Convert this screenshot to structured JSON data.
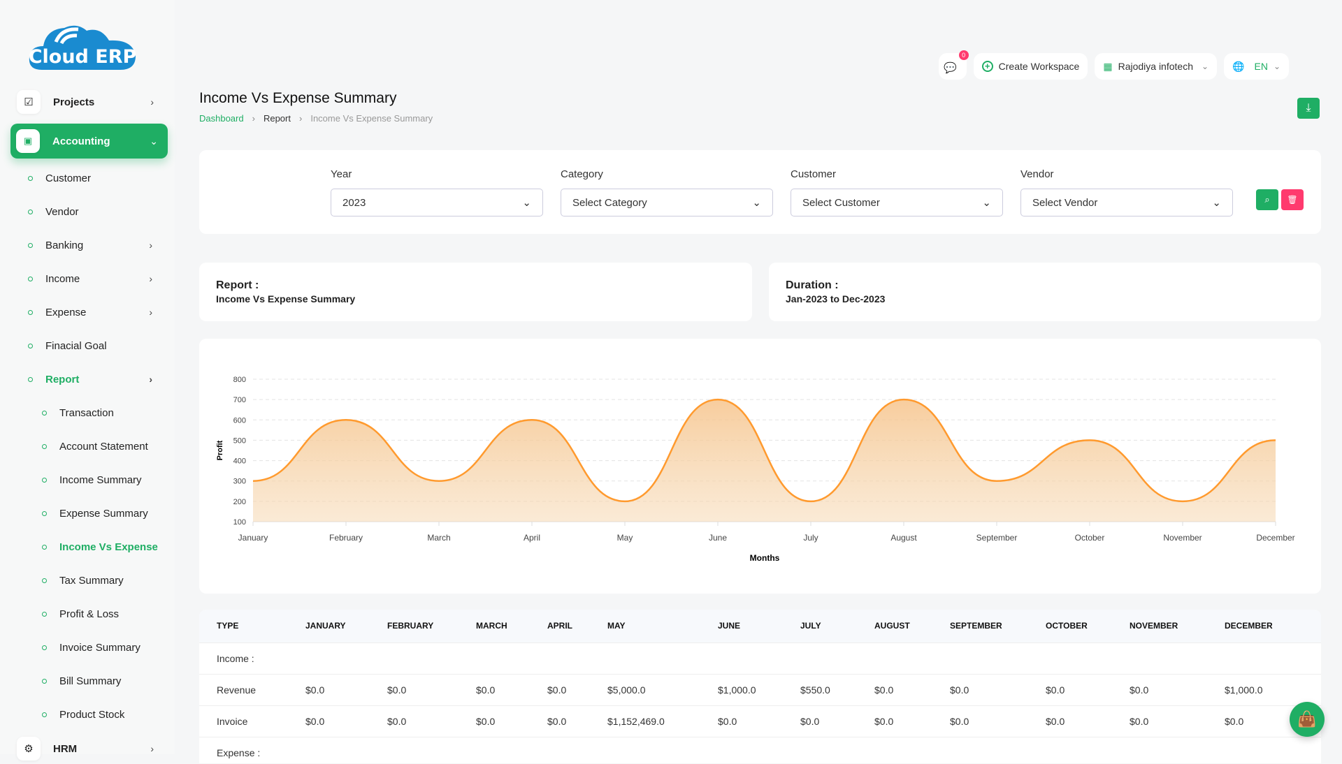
{
  "logo": {
    "text": "Cloud ERP"
  },
  "sidebar": {
    "projects": "Projects",
    "accounting": "Accounting",
    "hrm": "HRM",
    "items": [
      {
        "label": "Customer"
      },
      {
        "label": "Vendor"
      },
      {
        "label": "Banking",
        "chevron": true
      },
      {
        "label": "Income",
        "chevron": true
      },
      {
        "label": "Expense",
        "chevron": true
      },
      {
        "label": "Finacial Goal"
      },
      {
        "label": "Report",
        "chevron": true,
        "selected": true
      }
    ],
    "report_items": [
      {
        "label": "Transaction"
      },
      {
        "label": "Account Statement"
      },
      {
        "label": "Income Summary"
      },
      {
        "label": "Expense Summary"
      },
      {
        "label": "Income Vs Expense",
        "selected": true
      },
      {
        "label": "Tax Summary"
      },
      {
        "label": "Profit & Loss"
      },
      {
        "label": "Invoice Summary"
      },
      {
        "label": "Bill Summary"
      },
      {
        "label": "Product Stock"
      }
    ]
  },
  "topbar": {
    "notification_count": "0",
    "create_workspace": "Create Workspace",
    "workspace": "Rajodiya infotech",
    "language": "EN"
  },
  "page": {
    "title": "Income Vs Expense Summary",
    "breadcrumb": [
      "Dashboard",
      "Report",
      "Income Vs Expense Summary"
    ]
  },
  "filters": {
    "year": {
      "label": "Year",
      "value": "2023"
    },
    "category": {
      "label": "Category",
      "value": "Select Category"
    },
    "customer": {
      "label": "Customer",
      "value": "Select Customer"
    },
    "vendor": {
      "label": "Vendor",
      "value": "Select Vendor"
    }
  },
  "report_info": {
    "report_label": "Report :",
    "report_value": "Income Vs Expense Summary",
    "duration_label": "Duration :",
    "duration_value": "Jan-2023 to Dec-2023"
  },
  "colors": {
    "accent": "#1fae64",
    "danger": "#ff3a6e",
    "series": "#ff9a2e"
  },
  "chart_data": {
    "type": "area",
    "categories": [
      "January",
      "February",
      "March",
      "April",
      "May",
      "June",
      "July",
      "August",
      "September",
      "October",
      "November",
      "December"
    ],
    "values": [
      300,
      600,
      300,
      600,
      200,
      700,
      200,
      700,
      300,
      500,
      200,
      500
    ],
    "xlabel": "Months",
    "ylabel": "Profit",
    "ylim": [
      100,
      800
    ],
    "yticks": [
      100,
      200,
      300,
      400,
      500,
      600,
      700,
      800
    ],
    "grid": true
  },
  "table": {
    "headers": [
      "TYPE",
      "JANUARY",
      "FEBRUARY",
      "MARCH",
      "APRIL",
      "MAY",
      "JUNE",
      "JULY",
      "AUGUST",
      "SEPTEMBER",
      "OCTOBER",
      "NOVEMBER",
      "DECEMBER"
    ],
    "rows": [
      [
        "Income :",
        "",
        "",
        "",
        "",
        "",
        "",
        "",
        "",
        "",
        "",
        "",
        ""
      ],
      [
        "Revenue",
        "$0.0",
        "$0.0",
        "$0.0",
        "$0.0",
        "$5,000.0",
        "$1,000.0",
        "$550.0",
        "$0.0",
        "$0.0",
        "$0.0",
        "$0.0",
        "$1,000.0"
      ],
      [
        "Invoice",
        "$0.0",
        "$0.0",
        "$0.0",
        "$0.0",
        "$1,152,469.0",
        "$0.0",
        "$0.0",
        "$0.0",
        "$0.0",
        "$0.0",
        "$0.0",
        "$0.0"
      ],
      [
        "Expense :",
        "",
        "",
        "",
        "",
        "",
        "",
        "",
        "",
        "",
        "",
        "",
        ""
      ]
    ]
  }
}
